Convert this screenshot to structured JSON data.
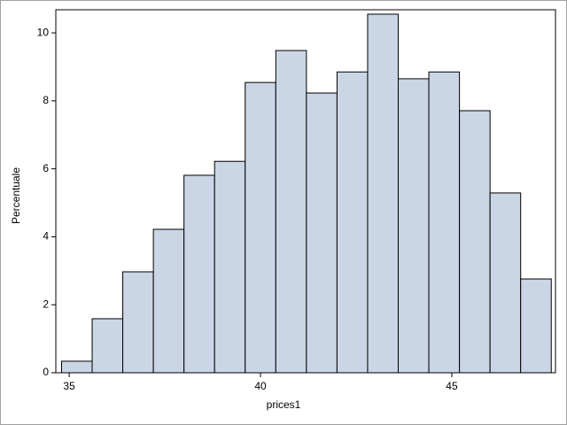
{
  "chart_data": {
    "type": "histogram",
    "x_label": "prices1",
    "y_label": "Percentuale",
    "bins": [
      34.8,
      35.6,
      36.4,
      37.2,
      38.0,
      38.8,
      39.6,
      40.4,
      41.2,
      42.0,
      42.8,
      43.6,
      44.4,
      45.2,
      46.0,
      46.8,
      47.6
    ],
    "values": [
      0.34,
      1.59,
      2.97,
      4.22,
      5.81,
      6.22,
      8.54,
      9.48,
      8.23,
      8.85,
      10.55,
      8.65,
      8.85,
      7.71,
      5.29,
      2.76
    ],
    "color": "#cad5e5",
    "xlim": [
      34.65,
      47.71
    ],
    "ylim": [
      0,
      10.68
    ],
    "xticks": [
      35,
      40,
      45
    ],
    "yticks": [
      0,
      2,
      4,
      6,
      8,
      10
    ]
  }
}
